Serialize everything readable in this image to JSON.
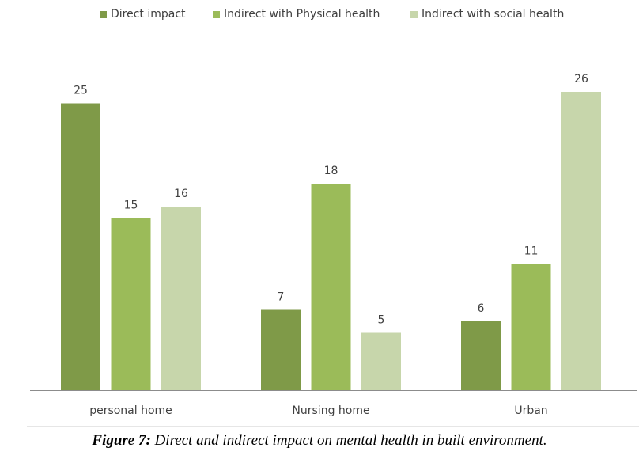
{
  "chart_data": {
    "type": "bar",
    "title": "",
    "xlabel": "",
    "ylabel": "",
    "categories": [
      "personal home",
      "Nursing home",
      "Urban"
    ],
    "series": [
      {
        "name": "Direct impact",
        "color": "#7f9a48",
        "values": [
          25,
          7,
          6
        ]
      },
      {
        "name": "Indirect with Physical health",
        "color": "#9bbb59",
        "values": [
          15,
          18,
          11
        ]
      },
      {
        "name": "Indirect with social health",
        "color": "#c7d6ab",
        "values": [
          16,
          5,
          26
        ]
      }
    ],
    "ylim": [
      0,
      26
    ],
    "grid": false,
    "legend_position": "top",
    "data_labels": true
  },
  "caption": {
    "label": "Figure 7:",
    "text": " Direct and indirect impact on mental health in built environment."
  }
}
